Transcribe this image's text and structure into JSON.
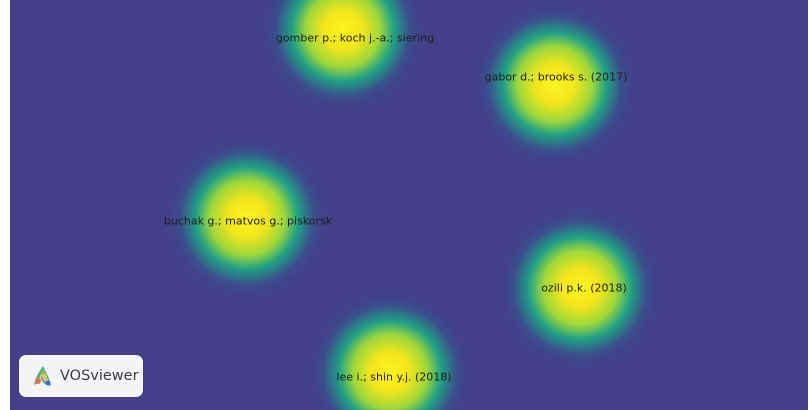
{
  "app": {
    "logo_text": "VOSviewer"
  },
  "colors": {
    "background": "#453f8a",
    "low": "#3b4f8d",
    "mid": "#21a285",
    "high": "#f3e61c",
    "peak": "#fdf41f",
    "label": "#1d1d1d"
  },
  "items": [
    {
      "id": "gomber",
      "label": "gomber p.; koch j.-a.; siering"
    },
    {
      "id": "gabor",
      "label": "gabor d.; brooks s. (2017)"
    },
    {
      "id": "buchak",
      "label": "buchak g.; matvos g.; piskorsk"
    },
    {
      "id": "ozili",
      "label": "ozili p.k. (2018)"
    },
    {
      "id": "lee",
      "label": "lee i.; shin y.j. (2018)"
    }
  ]
}
